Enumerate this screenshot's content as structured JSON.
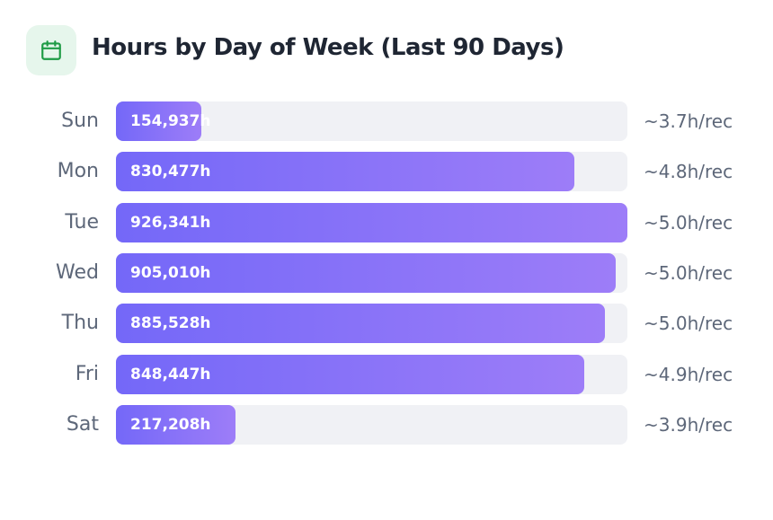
{
  "header": {
    "title": "Hours by Day of Week (Last 90 Days)",
    "icon": "calendar-icon",
    "icon_color": "#1e9b45"
  },
  "chart_data": {
    "type": "bar",
    "orientation": "horizontal",
    "title": "Hours by Day of Week (Last 90 Days)",
    "categories": [
      "Sun",
      "Mon",
      "Tue",
      "Wed",
      "Thu",
      "Fri",
      "Sat"
    ],
    "values": [
      154937,
      830477,
      926341,
      905010,
      885528,
      848447,
      217208
    ],
    "value_labels": [
      "154,937h",
      "830,477h",
      "926,341h",
      "905,010h",
      "885,528h",
      "848,447h",
      "217,208h"
    ],
    "rate_labels": [
      "~3.7h/rec",
      "~4.8h/rec",
      "~5.0h/rec",
      "~5.0h/rec",
      "~5.0h/rec",
      "~4.9h/rec",
      "~3.9h/rec"
    ],
    "xlim": [
      0,
      926341
    ],
    "colors": {
      "bar_start": "#7468f8",
      "bar_end": "#9d7df8",
      "track": "#f0f1f5"
    }
  }
}
